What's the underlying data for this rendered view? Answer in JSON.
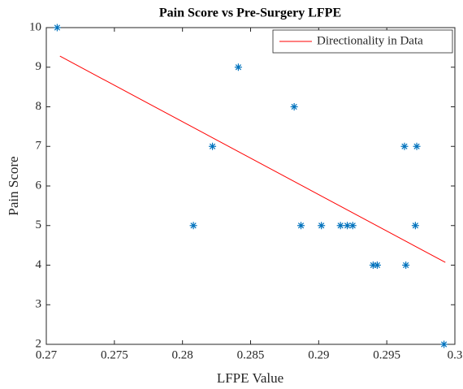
{
  "chart_data": {
    "type": "scatter",
    "title": "Pain Score vs Pre-Surgery LFPE",
    "xlabel": "LFPE Value",
    "ylabel": "Pain Score",
    "xlim": [
      0.27,
      0.3
    ],
    "xticks": [
      0.27,
      0.275,
      0.28,
      0.285,
      0.29,
      0.295,
      0.3
    ],
    "ylim": [
      2,
      10
    ],
    "yticks": [
      2,
      3,
      4,
      5,
      6,
      7,
      8,
      9,
      10
    ],
    "legend": "northeast",
    "series": [
      {
        "type": "scatter",
        "color": "#0072bd",
        "x": [
          0.2708,
          0.2808,
          0.2822,
          0.2841,
          0.2882,
          0.2887,
          0.2902,
          0.2916,
          0.2921,
          0.2925,
          0.294,
          0.2943,
          0.2963,
          0.2964,
          0.2972,
          0.2971,
          0.2992
        ],
        "values": [
          10,
          5,
          7,
          9,
          8,
          5,
          5,
          5,
          5,
          5,
          4,
          4,
          7,
          4,
          7,
          5,
          2
        ]
      },
      {
        "type": "line",
        "name": "Directionality in Data",
        "color": "#ff0000",
        "x": [
          0.271,
          0.2993
        ],
        "values": [
          9.28,
          4.07
        ]
      }
    ]
  }
}
